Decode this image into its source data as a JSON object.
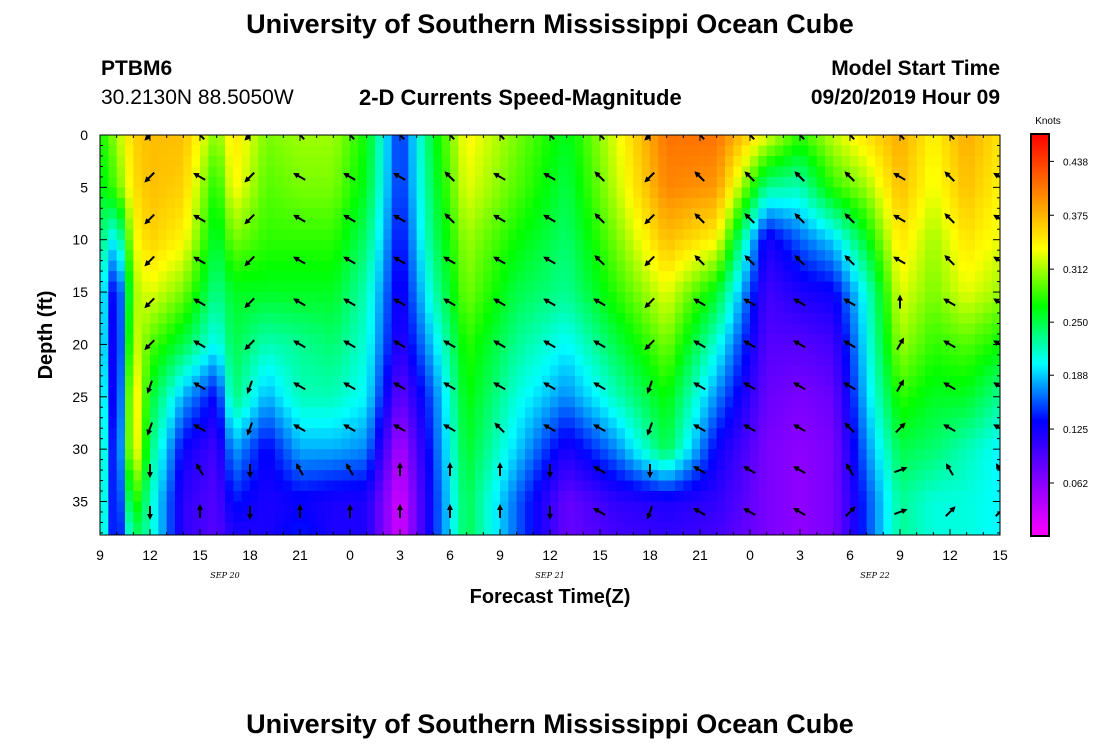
{
  "page": {
    "title_top": "University of Southern Mississippi Ocean Cube",
    "title_bottom": "University of Southern Mississippi Ocean Cube",
    "station_id": "PTBM6",
    "station_coords": "30.2130N 88.5050W",
    "plot_title": "2-D Currents Speed-Magnitude",
    "model_start_label": "Model Start Time",
    "model_start_value": "09/20/2019 Hour 09"
  },
  "chart_data": {
    "type": "heatmap",
    "title": "2-D Currents Speed-Magnitude",
    "xlabel": "Forecast Time(Z)",
    "ylabel": "Depth (ft)",
    "x_tick_labels": [
      "9",
      "12",
      "15",
      "18",
      "21",
      "0",
      "3",
      "6",
      "9",
      "12",
      "15",
      "18",
      "21",
      "0",
      "3",
      "6",
      "9",
      "12",
      "15"
    ],
    "x_day_labels": [
      {
        "label": "SEP 20",
        "hour_index": 7.5
      },
      {
        "label": "SEP 21",
        "hour_index": 27
      },
      {
        "label": "SEP 22",
        "hour_index": 46.5
      }
    ],
    "x_range_hours": [
      0,
      54
    ],
    "y_ticks": [
      0,
      5,
      10,
      15,
      20,
      25,
      30,
      35
    ],
    "ylim": [
      38.2,
      0
    ],
    "y_inverted": true,
    "colorbar": {
      "unit": "Knots",
      "tick_labels": [
        "0.438",
        "0.375",
        "0.312",
        "0.250",
        "0.188",
        "0.125",
        "0.062"
      ],
      "tick_values": [
        0.438,
        0.375,
        0.312,
        0.25,
        0.188,
        0.125,
        0.062
      ],
      "range": [
        0,
        0.47
      ],
      "colormap": [
        "#ff00ff",
        "#8000ff",
        "#0000ff",
        "#00ffff",
        "#00ff00",
        "#ffff00",
        "#ff8000",
        "#ff0000"
      ]
    },
    "speed_profiles_knots": {
      "depths_ft": [
        0,
        5,
        10,
        15,
        20,
        25,
        30,
        35,
        38
      ],
      "columns": [
        {
          "hour": 0,
          "speeds": [
            0.27,
            0.26,
            0.24,
            0.22,
            0.22,
            0.23,
            0.24,
            0.24,
            0.24
          ]
        },
        {
          "hour": 1,
          "speeds": [
            0.31,
            0.29,
            0.19,
            0.11,
            0.1,
            0.1,
            0.11,
            0.11,
            0.11
          ]
        },
        {
          "hour": 2,
          "speeds": [
            0.36,
            0.35,
            0.33,
            0.31,
            0.33,
            0.36,
            0.36,
            0.29,
            0.25
          ]
        },
        {
          "hour": 3,
          "speeds": [
            0.37,
            0.37,
            0.36,
            0.33,
            0.29,
            0.26,
            0.24,
            0.22,
            0.22
          ]
        },
        {
          "hour": 5,
          "speeds": [
            0.37,
            0.36,
            0.34,
            0.3,
            0.25,
            0.18,
            0.13,
            0.11,
            0.11
          ]
        },
        {
          "hour": 7,
          "speeds": [
            0.3,
            0.27,
            0.25,
            0.23,
            0.2,
            0.13,
            0.1,
            0.09,
            0.09
          ]
        },
        {
          "hour": 8,
          "speeds": [
            0.35,
            0.34,
            0.3,
            0.26,
            0.25,
            0.24,
            0.18,
            0.14,
            0.12
          ]
        },
        {
          "hour": 10,
          "speeds": [
            0.3,
            0.29,
            0.28,
            0.26,
            0.22,
            0.18,
            0.13,
            0.12,
            0.12
          ]
        },
        {
          "hour": 12,
          "speeds": [
            0.31,
            0.3,
            0.28,
            0.26,
            0.23,
            0.22,
            0.18,
            0.13,
            0.14
          ]
        },
        {
          "hour": 14,
          "speeds": [
            0.31,
            0.3,
            0.28,
            0.26,
            0.24,
            0.22,
            0.18,
            0.12,
            0.12
          ]
        },
        {
          "hour": 16,
          "speeds": [
            0.27,
            0.26,
            0.24,
            0.22,
            0.21,
            0.2,
            0.17,
            0.12,
            0.12
          ]
        },
        {
          "hour": 18,
          "speeds": [
            0.14,
            0.14,
            0.13,
            0.12,
            0.11,
            0.08,
            0.04,
            0.02,
            0.02
          ]
        },
        {
          "hour": 20,
          "speeds": [
            0.26,
            0.25,
            0.24,
            0.22,
            0.19,
            0.16,
            0.15,
            0.14,
            0.14
          ]
        },
        {
          "hour": 22,
          "speeds": [
            0.34,
            0.33,
            0.31,
            0.3,
            0.28,
            0.27,
            0.26,
            0.25,
            0.25
          ]
        },
        {
          "hour": 25,
          "speeds": [
            0.3,
            0.29,
            0.27,
            0.25,
            0.23,
            0.21,
            0.19,
            0.16,
            0.16
          ]
        },
        {
          "hour": 28,
          "speeds": [
            0.26,
            0.25,
            0.24,
            0.23,
            0.2,
            0.17,
            0.12,
            0.08,
            0.08
          ]
        },
        {
          "hour": 31,
          "speeds": [
            0.33,
            0.32,
            0.3,
            0.28,
            0.25,
            0.22,
            0.17,
            0.11,
            0.1
          ]
        },
        {
          "hour": 34,
          "speeds": [
            0.41,
            0.4,
            0.37,
            0.33,
            0.3,
            0.27,
            0.25,
            0.12,
            0.11
          ]
        },
        {
          "hour": 37,
          "speeds": [
            0.41,
            0.39,
            0.34,
            0.26,
            0.21,
            0.17,
            0.13,
            0.11,
            0.1
          ]
        },
        {
          "hour": 40,
          "speeds": [
            0.33,
            0.23,
            0.12,
            0.1,
            0.09,
            0.08,
            0.07,
            0.07,
            0.07
          ]
        },
        {
          "hour": 42,
          "speeds": [
            0.28,
            0.22,
            0.16,
            0.12,
            0.09,
            0.07,
            0.06,
            0.06,
            0.06
          ]
        },
        {
          "hour": 44,
          "speeds": [
            0.32,
            0.28,
            0.19,
            0.13,
            0.1,
            0.08,
            0.07,
            0.07,
            0.07
          ]
        },
        {
          "hour": 46,
          "speeds": [
            0.35,
            0.31,
            0.26,
            0.21,
            0.2,
            0.19,
            0.17,
            0.15,
            0.15
          ]
        },
        {
          "hour": 48,
          "speeds": [
            0.38,
            0.37,
            0.35,
            0.33,
            0.31,
            0.28,
            0.25,
            0.23,
            0.23
          ]
        },
        {
          "hour": 50,
          "speeds": [
            0.34,
            0.33,
            0.31,
            0.3,
            0.28,
            0.26,
            0.24,
            0.21,
            0.21
          ]
        },
        {
          "hour": 52,
          "speeds": [
            0.38,
            0.37,
            0.35,
            0.33,
            0.29,
            0.26,
            0.22,
            0.21,
            0.21
          ]
        },
        {
          "hour": 54,
          "speeds": [
            0.35,
            0.34,
            0.33,
            0.31,
            0.27,
            0.23,
            0.2,
            0.2,
            0.2
          ]
        }
      ]
    },
    "vector_directions_deg": {
      "hours": [
        3,
        6,
        9,
        12,
        15,
        18,
        21,
        24,
        27,
        30,
        33,
        36,
        39,
        42,
        45,
        48,
        51,
        54
      ],
      "depths_ft": [
        0,
        4,
        8,
        12,
        16,
        20,
        24,
        28,
        32,
        36
      ],
      "rows": [
        [
          225,
          315,
          225,
          315,
          315,
          315,
          315,
          315,
          315,
          315,
          225,
          315,
          315,
          315,
          315,
          315,
          315,
          315
        ],
        [
          225,
          300,
          225,
          300,
          300,
          300,
          315,
          300,
          300,
          315,
          225,
          315,
          315,
          315,
          315,
          300,
          315,
          300
        ],
        [
          225,
          300,
          225,
          300,
          300,
          300,
          315,
          300,
          300,
          315,
          225,
          315,
          315,
          315,
          315,
          300,
          315,
          300
        ],
        [
          225,
          300,
          225,
          300,
          300,
          300,
          300,
          300,
          300,
          315,
          225,
          315,
          315,
          315,
          315,
          300,
          315,
          300
        ],
        [
          225,
          300,
          225,
          300,
          300,
          300,
          300,
          300,
          300,
          300,
          225,
          300,
          300,
          300,
          300,
          0,
          300,
          300
        ],
        [
          225,
          300,
          225,
          300,
          300,
          300,
          300,
          300,
          300,
          300,
          225,
          300,
          300,
          300,
          300,
          30,
          300,
          300
        ],
        [
          200,
          300,
          200,
          300,
          300,
          300,
          300,
          300,
          300,
          300,
          200,
          300,
          300,
          300,
          300,
          30,
          300,
          300
        ],
        [
          200,
          300,
          200,
          300,
          300,
          300,
          300,
          315,
          300,
          300,
          200,
          300,
          300,
          300,
          315,
          45,
          300,
          300
        ],
        [
          180,
          330,
          180,
          330,
          330,
          0,
          0,
          0,
          180,
          300,
          180,
          300,
          300,
          300,
          330,
          70,
          330,
          330
        ],
        [
          180,
          360,
          180,
          0,
          0,
          0,
          0,
          0,
          180,
          300,
          200,
          300,
          300,
          300,
          45,
          70,
          45,
          45
        ]
      ]
    }
  }
}
